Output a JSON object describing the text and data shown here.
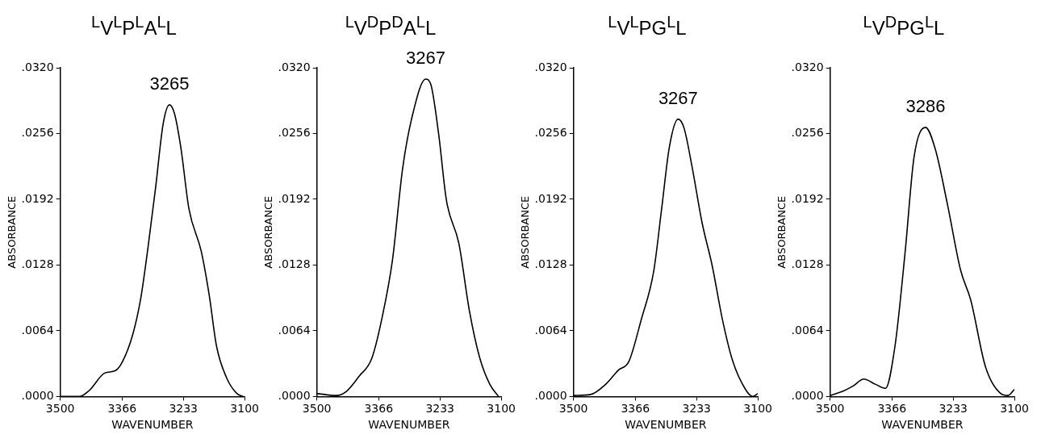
{
  "chart_data": [
    {
      "type": "line",
      "title": "$^{L}$V$^{L}$P$^{L}$A$^{L}$L",
      "xlabel": "WAVENUMBER",
      "ylabel": "ABSORBANCE",
      "color": "#000000",
      "marker": "none",
      "xlim": [
        3500,
        3100
      ],
      "ylim": [
        0,
        0.032
      ],
      "xticks": [
        3500,
        3366,
        3233,
        3100
      ],
      "yticks": [
        {
          "value": 0,
          "label": ".0000"
        },
        {
          "value": 0.0064,
          "label": ".0064"
        },
        {
          "value": 0.0128,
          "label": ".0128"
        },
        {
          "value": 0.0192,
          "label": ".0192"
        },
        {
          "value": 0.0256,
          "label": ".0256"
        },
        {
          "value": 0.032,
          "label": ".0320"
        }
      ],
      "x": [
        3500,
        3459,
        3437,
        3403,
        3381,
        3365,
        3343,
        3326,
        3310,
        3293,
        3277,
        3263,
        3252,
        3238,
        3221,
        3194,
        3177,
        3161,
        3139,
        3117,
        3103
      ],
      "values": [
        0,
        0,
        0.0006,
        0.0023,
        0.0025,
        0.0034,
        0.006,
        0.0094,
        0.0144,
        0.0204,
        0.0265,
        0.0284,
        0.0275,
        0.0241,
        0.0183,
        0.0141,
        0.0099,
        0.0049,
        0.0018,
        0.0003,
        0
      ],
      "annotations": [
        {
          "text": "3265",
          "x": 3263,
          "y": 0.0284
        }
      ]
    },
    {
      "type": "line",
      "title": "$^{L}$V$^{D}$P$^{D}$A$^{L}$L",
      "xlabel": "WAVENUMBER",
      "ylabel": "ABSORBANCE",
      "color": "#000000",
      "marker": "none",
      "xlim": [
        3500,
        3100
      ],
      "ylim": [
        0,
        0.032
      ],
      "xticks": [
        3500,
        3366,
        3233,
        3100
      ],
      "yticks": [
        {
          "value": 0,
          "label": ".0000"
        },
        {
          "value": 0.0064,
          "label": ".0064"
        },
        {
          "value": 0.0128,
          "label": ".0128"
        },
        {
          "value": 0.0192,
          "label": ".0192"
        },
        {
          "value": 0.0256,
          "label": ".0256"
        },
        {
          "value": 0.032,
          "label": ".0320"
        }
      ],
      "x": [
        3500,
        3458,
        3436,
        3408,
        3381,
        3358,
        3336,
        3314,
        3292,
        3264,
        3253,
        3236,
        3219,
        3192,
        3169,
        3147,
        3125,
        3106
      ],
      "values": [
        0.0003,
        0.0001,
        0.0005,
        0.002,
        0.0037,
        0.0078,
        0.0133,
        0.0222,
        0.0275,
        0.0309,
        0.0304,
        0.0256,
        0.0191,
        0.0149,
        0.0083,
        0.0038,
        0.0012,
        0
      ],
      "annotations": [
        {
          "text": "3267",
          "x": 3264,
          "y": 0.0309
        }
      ]
    },
    {
      "type": "line",
      "title": "$^{L}$V$^{L}$PG$^{L}$L",
      "xlabel": "WAVENUMBER",
      "ylabel": "ABSORBANCE",
      "color": "#000000",
      "marker": "none",
      "xlim": [
        3500,
        3100
      ],
      "ylim": [
        0,
        0.032
      ],
      "xticks": [
        3500,
        3366,
        3233,
        3100
      ],
      "yticks": [
        {
          "value": 0,
          "label": ".0000"
        },
        {
          "value": 0.0064,
          "label": ".0064"
        },
        {
          "value": 0.0128,
          "label": ".0128"
        },
        {
          "value": 0.0192,
          "label": ".0192"
        },
        {
          "value": 0.0256,
          "label": ".0256"
        },
        {
          "value": 0.032,
          "label": ".0320"
        }
      ],
      "x": [
        3500,
        3463,
        3430,
        3402,
        3380,
        3353,
        3326,
        3309,
        3292,
        3273,
        3260,
        3243,
        3221,
        3199,
        3177,
        3155,
        3127,
        3111,
        3100
      ],
      "values": [
        0.0001,
        0.0002,
        0.0012,
        0.0026,
        0.0034,
        0.0075,
        0.0122,
        0.0182,
        0.0243,
        0.027,
        0.0261,
        0.0224,
        0.0169,
        0.0127,
        0.0075,
        0.0035,
        0.0007,
        0,
        0.0003
      ],
      "annotations": [
        {
          "text": "3267",
          "x": 3273,
          "y": 0.027
        }
      ]
    },
    {
      "type": "line",
      "title": "$^{L}$V$^{D}$PG$^{L}$L",
      "xlabel": "WAVENUMBER",
      "ylabel": "ABSORBANCE",
      "color": "#000000",
      "marker": "none",
      "xlim": [
        3500,
        3100
      ],
      "ylim": [
        0,
        0.032
      ],
      "xticks": [
        3500,
        3366,
        3233,
        3100
      ],
      "yticks": [
        {
          "value": 0,
          "label": ".0000"
        },
        {
          "value": 0.0064,
          "label": ".0064"
        },
        {
          "value": 0.0128,
          "label": ".0128"
        },
        {
          "value": 0.0192,
          "label": ".0192"
        },
        {
          "value": 0.0256,
          "label": ".0256"
        },
        {
          "value": 0.032,
          "label": ".0320"
        }
      ],
      "x": [
        3500,
        3473,
        3451,
        3427,
        3402,
        3380,
        3359,
        3337,
        3318,
        3293,
        3272,
        3245,
        3217,
        3195,
        3163,
        3130,
        3114,
        3100
      ],
      "values": [
        0.0001,
        0.0005,
        0.001,
        0.0017,
        0.0012,
        0.0008,
        0.005,
        0.0142,
        0.0233,
        0.0262,
        0.0241,
        0.0186,
        0.0123,
        0.0094,
        0.0029,
        0.0003,
        0.0001,
        0.0007
      ],
      "annotations": [
        {
          "text": "3286",
          "x": 3293,
          "y": 0.0262
        }
      ]
    }
  ]
}
